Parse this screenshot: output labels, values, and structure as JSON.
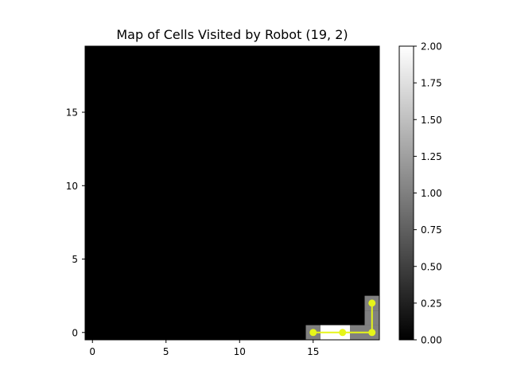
{
  "chart_data": {
    "type": "heatmap",
    "title": "Map of Cells Visited by Robot (19, 2)",
    "xlabel": "",
    "ylabel": "",
    "xlim": [
      -0.5,
      19.5
    ],
    "ylim": [
      -0.5,
      19.5
    ],
    "x_ticks": [
      0,
      5,
      10,
      15
    ],
    "y_ticks": [
      0,
      5,
      10,
      15
    ],
    "colormap": "gray",
    "grid": false,
    "cells": [
      {
        "x": 15,
        "y": 0,
        "value": 1
      },
      {
        "x": 16,
        "y": 0,
        "value": 2
      },
      {
        "x": 17,
        "y": 0,
        "value": 2
      },
      {
        "x": 18,
        "y": 0,
        "value": 1
      },
      {
        "x": 19,
        "y": 0,
        "value": 1
      },
      {
        "x": 19,
        "y": 1,
        "value": 1
      },
      {
        "x": 19,
        "y": 2,
        "value": 1
      }
    ],
    "background_value": 0,
    "path": {
      "color": "#e6f51a",
      "points": [
        [
          15,
          0
        ],
        [
          17,
          0
        ],
        [
          19,
          0
        ],
        [
          19,
          2
        ]
      ]
    },
    "colorbar": {
      "range": [
        0,
        2
      ],
      "ticks": [
        "0.00",
        "0.25",
        "0.50",
        "0.75",
        "1.00",
        "1.25",
        "1.50",
        "1.75",
        "2.00"
      ]
    }
  }
}
